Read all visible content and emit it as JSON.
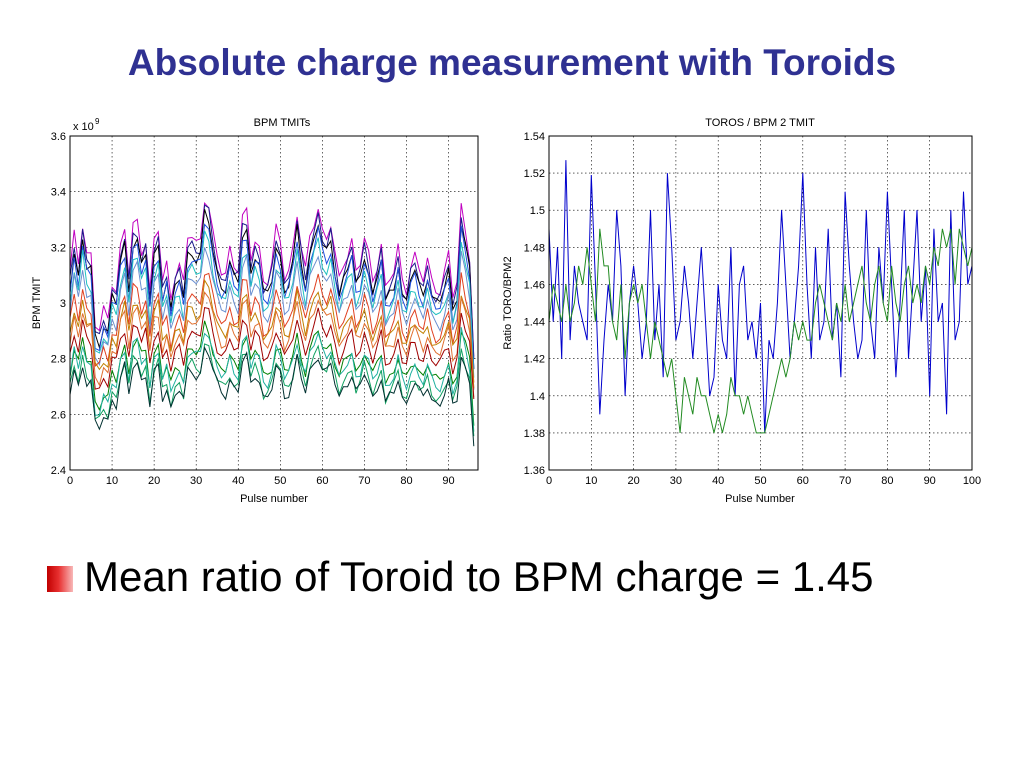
{
  "slide": {
    "title": "Absolute charge measurement with Toroids",
    "bullet": "Mean ratio of Toroid to BPM charge = 1.45"
  },
  "chart_data": [
    {
      "type": "line",
      "title": "BPM TMITs",
      "xlabel": "Pulse number",
      "ylabel": "BPM TMIT",
      "y_multiplier_label": "x 10",
      "y_multiplier_exp": "9",
      "xlim": [
        0,
        97
      ],
      "ylim": [
        2.4,
        3.6
      ],
      "xticks": [
        "0",
        "10",
        "20",
        "30",
        "40",
        "50",
        "60",
        "70",
        "80",
        "90"
      ],
      "yticks": [
        "2.4",
        "2.6",
        "2.8",
        "3",
        "3.2",
        "3.4",
        "3.6"
      ],
      "grid": true,
      "base_shape": [
        0.1,
        0.32,
        0.16,
        0.4,
        0.22,
        0.2,
        -0.22,
        -0.25,
        -0.13,
        -0.18,
        0.05,
        0.0,
        0.25,
        0.35,
        0.08,
        0.38,
        0.4,
        0.23,
        0.3,
        -0.02,
        0.28,
        0.35,
        0.05,
        0.15,
        -0.05,
        0.1,
        0.15,
        0.02,
        0.3,
        0.32,
        0.28,
        0.3,
        0.55,
        0.5,
        0.32,
        0.18,
        0.1,
        0.1,
        0.25,
        0.15,
        0.12,
        0.42,
        0.45,
        0.18,
        0.3,
        0.25,
        0.05,
        0.05,
        0.15,
        0.35,
        0.28,
        0.08,
        0.12,
        0.25,
        0.45,
        0.25,
        0.1,
        0.3,
        0.4,
        0.5,
        0.35,
        0.3,
        0.38,
        0.2,
        0.05,
        0.15,
        0.22,
        0.3,
        0.1,
        0.15,
        0.3,
        0.2,
        0.05,
        0.15,
        0.28,
        0.0,
        0.05,
        0.1,
        0.25,
        0.05,
        0.0,
        0.15,
        0.2,
        0.1,
        0.05,
        0.18,
        0.05,
        0.0,
        0.0,
        0.1,
        0.2,
        -0.05,
        0.05,
        0.5,
        0.35,
        0.2,
        -0.4
      ],
      "series": [
        {
          "color": "#c000c0",
          "offset": 3.05,
          "amp": 0.3
        },
        {
          "color": "#1a1a8a",
          "offset": 3.02,
          "amp": 0.3
        },
        {
          "color": "#000000",
          "offset": 3.0,
          "amp": 0.29
        },
        {
          "color": "#2050e0",
          "offset": 2.98,
          "amp": 0.28
        },
        {
          "color": "#20c0c0",
          "offset": 2.95,
          "amp": 0.27
        },
        {
          "color": "#6a8fd0",
          "offset": 2.92,
          "amp": 0.26
        },
        {
          "color": "#e04020",
          "offset": 2.88,
          "amp": 0.22
        },
        {
          "color": "#c08000",
          "offset": 2.85,
          "amp": 0.2
        },
        {
          "color": "#e07030",
          "offset": 2.82,
          "amp": 0.2
        },
        {
          "color": "#a00000",
          "offset": 2.78,
          "amp": 0.18
        },
        {
          "color": "#008000",
          "offset": 2.72,
          "amp": 0.18
        },
        {
          "color": "#20b0a0",
          "offset": 2.7,
          "amp": 0.19
        },
        {
          "color": "#10a060",
          "offset": 2.66,
          "amp": 0.18
        },
        {
          "color": "#003030",
          "offset": 2.64,
          "amp": 0.18
        }
      ]
    },
    {
      "type": "line",
      "title": "TOROS / BPM 2 TMIT",
      "xlabel": "Pulse Number",
      "ylabel": "Ratio TORO/BPM2",
      "xlim": [
        0,
        100
      ],
      "ylim": [
        1.36,
        1.54
      ],
      "xticks": [
        "0",
        "10",
        "20",
        "30",
        "40",
        "50",
        "60",
        "70",
        "80",
        "90",
        "100"
      ],
      "yticks": [
        "1.36",
        "1.38",
        "1.4",
        "1.42",
        "1.44",
        "1.46",
        "1.48",
        "1.5",
        "1.52",
        "1.54"
      ],
      "grid": true,
      "series": [
        {
          "color": "#0000cc",
          "values": [
            1.49,
            1.44,
            1.48,
            1.42,
            1.527,
            1.43,
            1.47,
            1.45,
            1.44,
            1.43,
            1.519,
            1.46,
            1.39,
            1.43,
            1.46,
            1.44,
            1.5,
            1.47,
            1.4,
            1.45,
            1.47,
            1.45,
            1.42,
            1.44,
            1.5,
            1.43,
            1.46,
            1.41,
            1.52,
            1.48,
            1.43,
            1.44,
            1.47,
            1.45,
            1.42,
            1.45,
            1.48,
            1.44,
            1.4,
            1.41,
            1.46,
            1.43,
            1.42,
            1.48,
            1.4,
            1.46,
            1.47,
            1.43,
            1.44,
            1.42,
            1.45,
            1.38,
            1.43,
            1.42,
            1.45,
            1.5,
            1.46,
            1.42,
            1.44,
            1.47,
            1.52,
            1.46,
            1.42,
            1.48,
            1.43,
            1.44,
            1.49,
            1.43,
            1.45,
            1.41,
            1.51,
            1.47,
            1.44,
            1.42,
            1.43,
            1.5,
            1.44,
            1.42,
            1.48,
            1.45,
            1.51,
            1.46,
            1.41,
            1.45,
            1.5,
            1.42,
            1.46,
            1.5,
            1.44,
            1.47,
            1.4,
            1.49,
            1.44,
            1.45,
            1.39,
            1.5,
            1.43,
            1.44,
            1.51,
            1.46,
            1.47
          ]
        },
        {
          "color": "#228b22",
          "values": [
            1.44,
            1.46,
            1.45,
            1.44,
            1.46,
            1.44,
            1.45,
            1.47,
            1.46,
            1.48,
            1.46,
            1.44,
            1.49,
            1.47,
            1.47,
            1.44,
            1.43,
            1.46,
            1.42,
            1.45,
            1.46,
            1.45,
            1.46,
            1.44,
            1.42,
            1.44,
            1.43,
            1.42,
            1.41,
            1.42,
            1.4,
            1.38,
            1.41,
            1.4,
            1.39,
            1.41,
            1.4,
            1.4,
            1.39,
            1.38,
            1.39,
            1.38,
            1.39,
            1.41,
            1.4,
            1.4,
            1.39,
            1.4,
            1.39,
            1.38,
            1.38,
            1.38,
            1.39,
            1.4,
            1.41,
            1.42,
            1.41,
            1.42,
            1.44,
            1.43,
            1.44,
            1.43,
            1.43,
            1.45,
            1.46,
            1.45,
            1.44,
            1.43,
            1.45,
            1.44,
            1.46,
            1.44,
            1.45,
            1.46,
            1.47,
            1.45,
            1.44,
            1.46,
            1.47,
            1.45,
            1.44,
            1.47,
            1.45,
            1.44,
            1.46,
            1.47,
            1.45,
            1.46,
            1.45,
            1.47,
            1.46,
            1.48,
            1.47,
            1.49,
            1.48,
            1.49,
            1.46,
            1.49,
            1.48,
            1.47,
            1.48
          ]
        }
      ]
    }
  ]
}
